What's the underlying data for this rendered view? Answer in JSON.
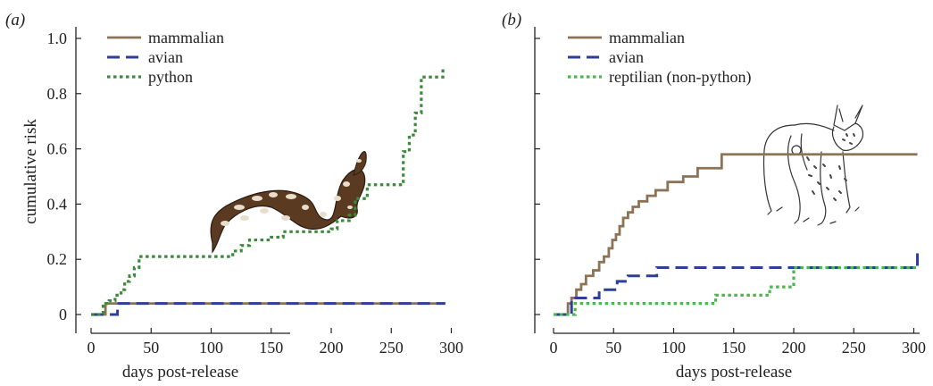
{
  "chart_data": [
    {
      "type": "line",
      "panel_label": "(a)",
      "xlabel": "days post-release",
      "ylabel": "cumulative risk",
      "xlim": [
        0,
        300
      ],
      "ylim": [
        0,
        1.0
      ],
      "xticks": [
        0,
        50,
        100,
        150,
        200,
        250,
        300
      ],
      "yticks": [
        0,
        0.2,
        0.4,
        0.6,
        0.8,
        1.0
      ],
      "ytick_labels": [
        "0",
        "0.2",
        "0.4",
        "0.6",
        "0.8",
        "1.0"
      ],
      "legend_position": "top-left",
      "illustration": "python-snake",
      "series": [
        {
          "name": "mammalian",
          "color": "#8c7355",
          "style": "solid",
          "x": [
            0,
            12,
            295
          ],
          "y": [
            0,
            0.04,
            0.04
          ]
        },
        {
          "name": "avian",
          "color": "#2e3e9a",
          "style": "dashed",
          "x": [
            0,
            22,
            295
          ],
          "y": [
            0,
            0.04,
            0.04
          ]
        },
        {
          "name": "python",
          "color": "#3c8a3c",
          "style": "dotted",
          "x": [
            0,
            10,
            15,
            20,
            25,
            28,
            32,
            36,
            40,
            118,
            125,
            132,
            150,
            160,
            200,
            205,
            215,
            220,
            230,
            260,
            265,
            270,
            275,
            293
          ],
          "y": [
            0,
            0.04,
            0.05,
            0.07,
            0.09,
            0.12,
            0.14,
            0.17,
            0.21,
            0.23,
            0.25,
            0.27,
            0.28,
            0.3,
            0.31,
            0.34,
            0.36,
            0.42,
            0.47,
            0.59,
            0.65,
            0.73,
            0.86,
            0.89
          ]
        }
      ]
    },
    {
      "type": "line",
      "panel_label": "(b)",
      "xlabel": "days post-release",
      "ylabel": "",
      "xlim": [
        0,
        300
      ],
      "ylim": [
        0,
        1.0
      ],
      "xticks": [
        0,
        50,
        100,
        150,
        200,
        250,
        300
      ],
      "legend_position": "top-left",
      "illustration": "wild-cat",
      "series": [
        {
          "name": "mammalian",
          "color": "#8c7355",
          "style": "solid",
          "x": [
            0,
            12,
            15,
            19,
            23,
            27,
            33,
            38,
            42,
            46,
            49,
            52,
            55,
            58,
            62,
            66,
            71,
            78,
            85,
            95,
            108,
            120,
            140,
            303
          ],
          "y": [
            0,
            0.04,
            0.06,
            0.09,
            0.11,
            0.14,
            0.16,
            0.19,
            0.21,
            0.24,
            0.27,
            0.29,
            0.32,
            0.35,
            0.37,
            0.39,
            0.41,
            0.43,
            0.45,
            0.48,
            0.5,
            0.53,
            0.58,
            0.58
          ]
        },
        {
          "name": "avian",
          "color": "#2e3e9a",
          "style": "dashed",
          "x": [
            0,
            15,
            38,
            53,
            62,
            86,
            303
          ],
          "y": [
            0,
            0.06,
            0.09,
            0.12,
            0.14,
            0.17,
            0.24
          ]
        },
        {
          "name": "reptilian (non-python)",
          "color": "#49b949",
          "style": "dotted",
          "x": [
            0,
            18,
            120,
            135,
            180,
            200,
            303
          ],
          "y": [
            0,
            0.04,
            0.04,
            0.07,
            0.1,
            0.17,
            0.17
          ]
        }
      ]
    }
  ]
}
